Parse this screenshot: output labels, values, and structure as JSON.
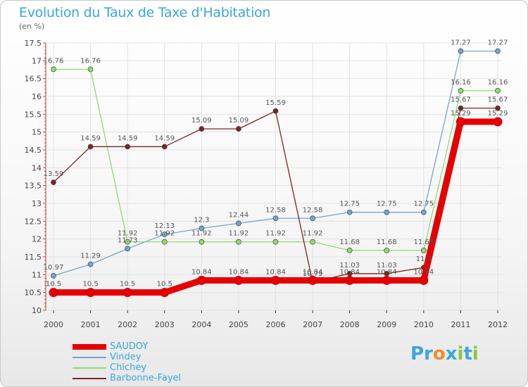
{
  "header": {
    "title": "Evolution du Taux de Taxe d'Habitation",
    "subtitle": "(en %)"
  },
  "brand": {
    "text": "Proxiti",
    "letters": [
      "P",
      "r",
      "o",
      "x",
      "i",
      "t",
      "i"
    ],
    "colors": [
      "#3aa6e0",
      "#3aa6e0",
      "#f28c28",
      "#3aa6e0",
      "#8cc63f",
      "#3aa6e0",
      "#8cc63f"
    ]
  },
  "chart_data": {
    "type": "line",
    "title": "Evolution du Taux de Taxe d'Habitation",
    "ylabel": "(en %)",
    "xlabel": "",
    "x": [
      "2000",
      "2001",
      "2002",
      "2003",
      "2004",
      "2005",
      "2006",
      "2007",
      "2008",
      "2009",
      "2010",
      "2011",
      "2012"
    ],
    "ylim": [
      10,
      17.5
    ],
    "yticks": [
      "10",
      "10.5",
      "11",
      "11.5",
      "12",
      "12.5",
      "13",
      "13.5",
      "14",
      "14.5",
      "15",
      "15.5",
      "16",
      "16.5",
      "17",
      "17.5"
    ],
    "grid": true,
    "legend_position": "bottom-left",
    "series": [
      {
        "name": "SAUDOY",
        "color": "#e60000",
        "width": 9,
        "values": [
          10.5,
          10.5,
          10.5,
          10.5,
          10.84,
          10.84,
          10.84,
          10.84,
          10.84,
          10.84,
          10.84,
          15.29,
          15.29
        ],
        "labels": [
          "10.5",
          "10.5",
          "10.5",
          "10.5",
          "10.84",
          "10.84",
          "10.84",
          "10.84",
          "10.84",
          "10.84",
          "10.84",
          "15.29",
          "15.29"
        ]
      },
      {
        "name": "Vindey",
        "color": "#6fa6d6",
        "width": 1.3,
        "values": [
          10.97,
          11.29,
          11.73,
          12.13,
          12.3,
          12.44,
          12.58,
          12.58,
          12.75,
          12.75,
          12.75,
          17.27,
          17.27
        ],
        "labels": [
          "10.97",
          "11.29",
          "11.73",
          "12.13",
          "12.3",
          "12.44",
          "12.58",
          "12.58",
          "12.75",
          "12.75",
          "12.75",
          "17.27",
          "17.27"
        ]
      },
      {
        "name": "Chichey",
        "color": "#8fdb6c",
        "width": 1.3,
        "values": [
          16.76,
          16.76,
          11.92,
          11.92,
          11.92,
          11.92,
          11.92,
          11.92,
          11.68,
          11.68,
          11.68,
          16.16,
          16.16
        ],
        "labels": [
          "16.76",
          "16.76",
          "11.92",
          "11.92",
          "11.92",
          "11.92",
          "11.92",
          "11.92",
          "11.68",
          "11.68",
          "11.68",
          "16.16",
          "16.16"
        ]
      },
      {
        "name": "Barbonne-Fayel",
        "color": "#7a2424",
        "width": 1.3,
        "values": [
          13.59,
          14.59,
          14.59,
          14.59,
          15.09,
          15.09,
          15.59,
          10.79,
          11.03,
          11.03,
          11.2,
          15.67,
          15.67
        ],
        "labels": [
          "13.59",
          "14.59",
          "14.59",
          "14.59",
          "15.09",
          "15.09",
          "15.59",
          "10.79",
          "11.03",
          "11.03",
          "11.2",
          "15.67",
          "15.67"
        ]
      }
    ]
  }
}
